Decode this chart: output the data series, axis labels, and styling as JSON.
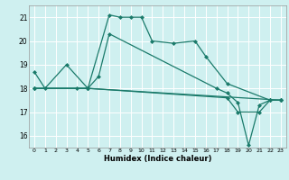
{
  "xlabel": "Humidex (Indice chaleur)",
  "bg_color": "#cff0f0",
  "line_color": "#1a7a6a",
  "grid_color": "#ffffff",
  "xlim": [
    -0.5,
    23.5
  ],
  "ylim": [
    15.5,
    21.5
  ],
  "yticks": [
    16,
    17,
    18,
    19,
    20,
    21
  ],
  "xticks": [
    0,
    1,
    2,
    3,
    4,
    5,
    6,
    7,
    8,
    9,
    10,
    11,
    12,
    13,
    14,
    15,
    16,
    17,
    18,
    19,
    20,
    21,
    22,
    23
  ],
  "series": [
    {
      "x": [
        0,
        1,
        3,
        5,
        7,
        8,
        9,
        10,
        11,
        13,
        15,
        16,
        18,
        22,
        23
      ],
      "y": [
        18.7,
        18.0,
        19.0,
        18.0,
        21.1,
        21.0,
        21.0,
        21.0,
        20.0,
        19.9,
        20.0,
        19.35,
        18.2,
        17.5,
        17.5
      ]
    },
    {
      "x": [
        0,
        4,
        5,
        6,
        7,
        17,
        18,
        19,
        20,
        21,
        22,
        23
      ],
      "y": [
        18.0,
        18.0,
        18.0,
        18.5,
        20.3,
        18.0,
        17.8,
        17.4,
        15.6,
        17.3,
        17.5,
        17.5
      ]
    },
    {
      "x": [
        0,
        5,
        23
      ],
      "y": [
        18.0,
        18.0,
        17.5
      ]
    },
    {
      "x": [
        0,
        5,
        18,
        19,
        21,
        22,
        23
      ],
      "y": [
        18.0,
        18.0,
        17.6,
        17.0,
        17.0,
        17.5,
        17.5
      ]
    }
  ]
}
